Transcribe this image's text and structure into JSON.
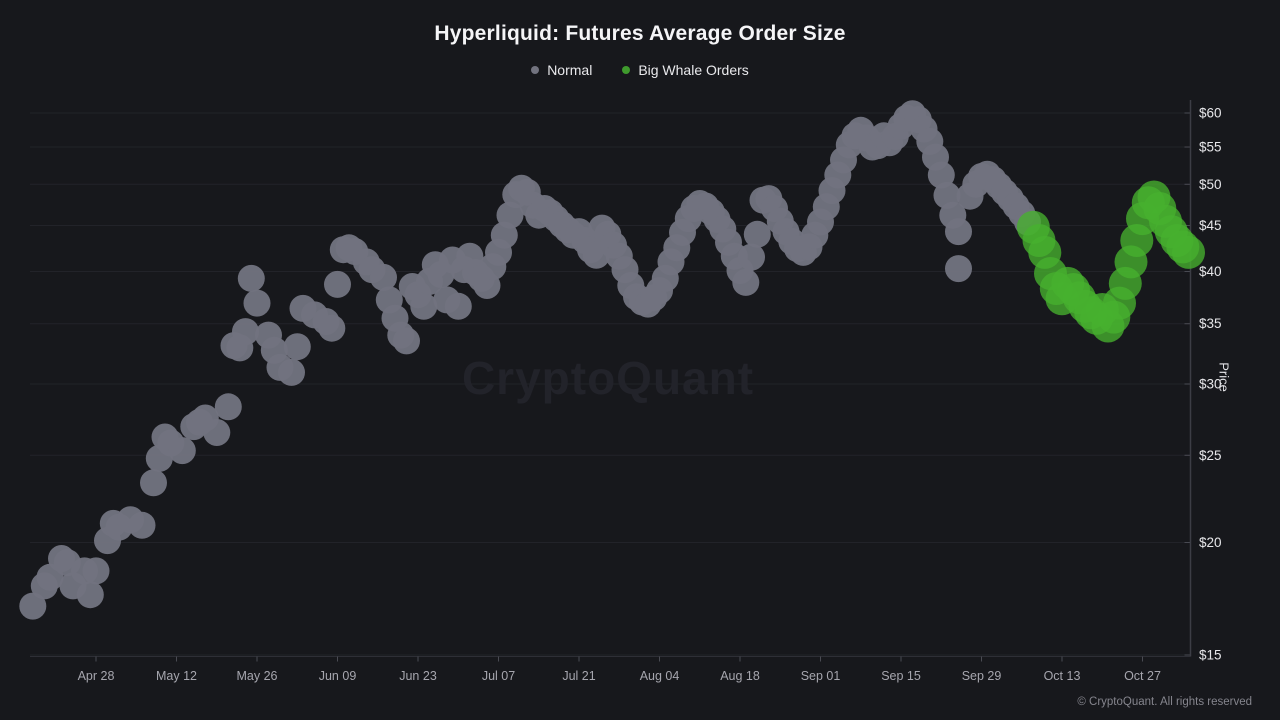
{
  "title": "Hyperliquid: Futures Average Order Size",
  "watermark": "CryptoQuant",
  "footer": "© CryptoQuant. All rights reserved",
  "legend": [
    {
      "label": "Normal",
      "color": "#72737f"
    },
    {
      "label": "Big Whale Orders",
      "color": "#3f9a2d"
    }
  ],
  "chart_data": {
    "type": "scatter",
    "title": "Hyperliquid: Futures Average Order Size",
    "xlabel": "",
    "ylabel": "Price",
    "y_scale": "log",
    "ylim": [
      15,
      60
    ],
    "y_ticks": [
      15,
      20,
      25,
      30,
      35,
      40,
      45,
      50,
      55,
      60
    ],
    "y_tick_prefix": "$",
    "grid": "horizontal",
    "legend_position": "top-center",
    "x_unit": "days since Apr 17",
    "x_ticks": [
      {
        "label": "Apr 28",
        "day": 11
      },
      {
        "label": "May 12",
        "day": 25
      },
      {
        "label": "May 26",
        "day": 39
      },
      {
        "label": "Jun 09",
        "day": 53
      },
      {
        "label": "Jun 23",
        "day": 67
      },
      {
        "label": "Jul 07",
        "day": 81
      },
      {
        "label": "Jul 21",
        "day": 95
      },
      {
        "label": "Aug 04",
        "day": 109
      },
      {
        "label": "Aug 18",
        "day": 123
      },
      {
        "label": "Sep 01",
        "day": 137
      },
      {
        "label": "Sep 15",
        "day": 151
      },
      {
        "label": "Sep 29",
        "day": 165
      },
      {
        "label": "Oct 13",
        "day": 179
      },
      {
        "label": "Oct 27",
        "day": 193
      }
    ],
    "series": [
      {
        "name": "Normal",
        "color": "#71727f",
        "fill_opacity": 0.96,
        "radius": 13.5,
        "points": [
          [
            0,
            17.0
          ],
          [
            2,
            17.9
          ],
          [
            3,
            18.3
          ],
          [
            5,
            19.2
          ],
          [
            6,
            19.0
          ],
          [
            7,
            17.9
          ],
          [
            9,
            18.6
          ],
          [
            10,
            17.5
          ],
          [
            11,
            18.6
          ],
          [
            13,
            20.1
          ],
          [
            14,
            21.0
          ],
          [
            15,
            20.8
          ],
          [
            17,
            21.2
          ],
          [
            19,
            20.9
          ],
          [
            21,
            23.3
          ],
          [
            22,
            24.8
          ],
          [
            23,
            26.2
          ],
          [
            24,
            25.8
          ],
          [
            26,
            25.3
          ],
          [
            28,
            26.9
          ],
          [
            29,
            27.2
          ],
          [
            30,
            27.5
          ],
          [
            32,
            26.5
          ],
          [
            34,
            28.3
          ],
          [
            35,
            33.1
          ],
          [
            36,
            32.9
          ],
          [
            37,
            34.3
          ],
          [
            38,
            39.3
          ],
          [
            39,
            36.9
          ],
          [
            41,
            34.0
          ],
          [
            42,
            32.7
          ],
          [
            43,
            31.3
          ],
          [
            45,
            30.9
          ],
          [
            46,
            33.0
          ],
          [
            47,
            36.4
          ],
          [
            49,
            35.8
          ],
          [
            51,
            35.2
          ],
          [
            52,
            34.6
          ],
          [
            53,
            38.7
          ],
          [
            54,
            42.3
          ],
          [
            55,
            42.5
          ],
          [
            56,
            42.1
          ],
          [
            58,
            41.0
          ],
          [
            59,
            40.2
          ],
          [
            61,
            39.4
          ],
          [
            62,
            37.2
          ],
          [
            63,
            35.5
          ],
          [
            64,
            34.0
          ],
          [
            65,
            33.5
          ],
          [
            66,
            38.5
          ],
          [
            67,
            37.7
          ],
          [
            68,
            36.6
          ],
          [
            69,
            39.0
          ],
          [
            70,
            40.7
          ],
          [
            71,
            39.7
          ],
          [
            72,
            37.2
          ],
          [
            73,
            41.2
          ],
          [
            74,
            36.6
          ],
          [
            75,
            40.2
          ],
          [
            76,
            41.6
          ],
          [
            77,
            39.9
          ],
          [
            78,
            39.3
          ],
          [
            79,
            38.6
          ],
          [
            80,
            40.5
          ],
          [
            81,
            42.0
          ],
          [
            82,
            43.9
          ],
          [
            83,
            46.2
          ],
          [
            84,
            48.7
          ],
          [
            85,
            49.5
          ],
          [
            86,
            49.0
          ],
          [
            87,
            47.4
          ],
          [
            88,
            46.2
          ],
          [
            89,
            47.0
          ],
          [
            90,
            46.5
          ],
          [
            91,
            45.8
          ],
          [
            92,
            45.1
          ],
          [
            93,
            44.5
          ],
          [
            94,
            43.9
          ],
          [
            95,
            44.3
          ],
          [
            96,
            43.3
          ],
          [
            97,
            42.3
          ],
          [
            98,
            41.7
          ],
          [
            99,
            44.7
          ],
          [
            100,
            44.0
          ],
          [
            101,
            42.8
          ],
          [
            102,
            41.6
          ],
          [
            103,
            40.2
          ],
          [
            104,
            38.6
          ],
          [
            105,
            37.5
          ],
          [
            106,
            37.0
          ],
          [
            107,
            36.8
          ],
          [
            108,
            37.4
          ],
          [
            109,
            38.1
          ],
          [
            110,
            39.3
          ],
          [
            111,
            41.0
          ],
          [
            112,
            42.5
          ],
          [
            113,
            44.2
          ],
          [
            114,
            45.8
          ],
          [
            115,
            47.0
          ],
          [
            116,
            47.6
          ],
          [
            117,
            47.3
          ],
          [
            118,
            46.6
          ],
          [
            119,
            45.7
          ],
          [
            120,
            44.6
          ],
          [
            121,
            43.1
          ],
          [
            122,
            41.6
          ],
          [
            123,
            40.1
          ],
          [
            124,
            38.9
          ],
          [
            125,
            41.5
          ],
          [
            126,
            44.0
          ],
          [
            127,
            48.0
          ],
          [
            128,
            48.2
          ],
          [
            129,
            47.0
          ],
          [
            130,
            45.5
          ],
          [
            131,
            44.3
          ],
          [
            132,
            43.2
          ],
          [
            133,
            42.4
          ],
          [
            134,
            42.0
          ],
          [
            135,
            42.6
          ],
          [
            136,
            43.9
          ],
          [
            137,
            45.4
          ],
          [
            138,
            47.2
          ],
          [
            139,
            49.2
          ],
          [
            140,
            51.2
          ],
          [
            141,
            53.2
          ],
          [
            142,
            55.3
          ],
          [
            143,
            56.6
          ],
          [
            144,
            57.4
          ],
          [
            145,
            56.3
          ],
          [
            146,
            55.0
          ],
          [
            147,
            55.2
          ],
          [
            148,
            56.6
          ],
          [
            149,
            55.6
          ],
          [
            150,
            56.5
          ],
          [
            151,
            58.0
          ],
          [
            152,
            59.2
          ],
          [
            153,
            59.9
          ],
          [
            154,
            59.0
          ],
          [
            155,
            57.6
          ],
          [
            156,
            55.8
          ],
          [
            157,
            53.6
          ],
          [
            158,
            51.2
          ],
          [
            159,
            48.6
          ],
          [
            160,
            46.2
          ],
          [
            161,
            44.3
          ],
          [
            161,
            40.3
          ],
          [
            163,
            48.5
          ],
          [
            164,
            50.0
          ],
          [
            165,
            51.0
          ],
          [
            166,
            51.3
          ],
          [
            167,
            50.6
          ],
          [
            168,
            49.8
          ],
          [
            169,
            49.0
          ],
          [
            170,
            48.2
          ],
          [
            171,
            47.3
          ],
          [
            172,
            46.4
          ],
          [
            173,
            45.4
          ]
        ]
      },
      {
        "name": "Big Whale Orders",
        "color": "#46b12e",
        "fill_opacity": 0.78,
        "radius": 16.5,
        "points": [
          [
            174,
            44.8
          ],
          [
            175,
            43.3
          ],
          [
            176,
            42.0
          ],
          [
            177,
            39.8
          ],
          [
            178,
            38.3
          ],
          [
            179,
            37.3
          ],
          [
            180,
            38.8
          ],
          [
            181,
            38.2
          ],
          [
            182,
            37.4
          ],
          [
            183,
            36.6
          ],
          [
            184,
            36.0
          ],
          [
            185,
            35.5
          ],
          [
            186,
            36.3
          ],
          [
            187,
            34.8
          ],
          [
            188,
            35.6
          ],
          [
            189,
            36.9
          ],
          [
            190,
            38.8
          ],
          [
            191,
            41.0
          ],
          [
            192,
            43.3
          ],
          [
            193,
            45.8
          ],
          [
            194,
            47.7
          ],
          [
            195,
            48.4
          ],
          [
            196,
            47.0
          ],
          [
            197,
            45.5
          ],
          [
            198,
            44.3
          ],
          [
            199,
            43.3
          ],
          [
            200,
            42.6
          ],
          [
            201,
            42.0
          ]
        ]
      }
    ]
  }
}
